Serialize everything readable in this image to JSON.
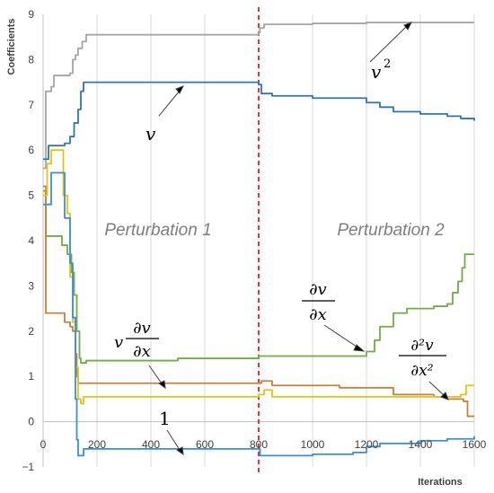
{
  "chart_data": {
    "type": "line",
    "xlabel": "Iterations",
    "ylabel": "Coefficients",
    "xlim": [
      0,
      1600
    ],
    "ylim": [
      -1,
      9
    ],
    "xticks": [
      "0",
      "200",
      "400",
      "600",
      "800",
      "1000",
      "1200",
      "1400",
      "1600"
    ],
    "yticks": [
      "−1",
      "0",
      "1",
      "2",
      "3",
      "4",
      "5",
      "6",
      "7",
      "8",
      "9"
    ],
    "grid": "vertical",
    "vline": {
      "x": 800,
      "color": "#e02020",
      "style": "dashed"
    },
    "annotations": [
      {
        "text": "Perturbation 1",
        "x": 300,
        "y": 4.2
      },
      {
        "text": "Perturbation 2",
        "x": 1325,
        "y": 4.2
      }
    ],
    "series": [
      {
        "name": "v²",
        "color": "#a6a6a6",
        "points": [
          [
            0,
            5.6
          ],
          [
            10,
            7.3
          ],
          [
            30,
            7.4
          ],
          [
            40,
            7.65
          ],
          [
            80,
            7.65
          ],
          [
            100,
            7.7
          ],
          [
            110,
            8.0
          ],
          [
            120,
            8.1
          ],
          [
            130,
            8.25
          ],
          [
            145,
            8.4
          ],
          [
            160,
            8.55
          ],
          [
            800,
            8.6
          ],
          [
            805,
            8.7
          ],
          [
            820,
            8.78
          ],
          [
            1000,
            8.8
          ],
          [
            1200,
            8.82
          ],
          [
            1600,
            8.82
          ]
        ]
      },
      {
        "name": "v",
        "color": "#2e75b6",
        "points": [
          [
            0,
            5.8
          ],
          [
            20,
            6.1
          ],
          [
            80,
            6.15
          ],
          [
            100,
            6.3
          ],
          [
            115,
            6.6
          ],
          [
            130,
            6.9
          ],
          [
            140,
            7.3
          ],
          [
            150,
            7.5
          ],
          [
            800,
            7.45
          ],
          [
            810,
            7.25
          ],
          [
            850,
            7.2
          ],
          [
            1000,
            7.15
          ],
          [
            1200,
            7.05
          ],
          [
            1250,
            6.95
          ],
          [
            1300,
            6.85
          ],
          [
            1400,
            6.8
          ],
          [
            1500,
            6.75
          ],
          [
            1550,
            6.7
          ],
          [
            1600,
            6.65
          ]
        ]
      },
      {
        "name": "∂v/∂x",
        "color": "#70ad47",
        "points": [
          [
            0,
            5.1
          ],
          [
            10,
            4.1
          ],
          [
            60,
            4.1
          ],
          [
            70,
            3.9
          ],
          [
            90,
            3.7
          ],
          [
            105,
            3.3
          ],
          [
            115,
            2.8
          ],
          [
            125,
            2.0
          ],
          [
            135,
            1.4
          ],
          [
            140,
            1.3
          ],
          [
            160,
            1.35
          ],
          [
            400,
            1.35
          ],
          [
            500,
            1.4
          ],
          [
            800,
            1.45
          ],
          [
            1000,
            1.45
          ],
          [
            1150,
            1.45
          ],
          [
            1200,
            1.55
          ],
          [
            1230,
            1.8
          ],
          [
            1250,
            2.1
          ],
          [
            1300,
            2.4
          ],
          [
            1350,
            2.5
          ],
          [
            1450,
            2.55
          ],
          [
            1500,
            2.6
          ],
          [
            1520,
            2.85
          ],
          [
            1540,
            3.1
          ],
          [
            1555,
            3.4
          ],
          [
            1565,
            3.7
          ],
          [
            1600,
            3.7
          ]
        ]
      },
      {
        "name": "v·∂v/∂x",
        "color": "#c5833a",
        "points": [
          [
            0,
            5.2
          ],
          [
            10,
            2.4
          ],
          [
            60,
            2.4
          ],
          [
            80,
            2.2
          ],
          [
            100,
            2.1
          ],
          [
            110,
            2.0
          ],
          [
            120,
            1.5
          ],
          [
            125,
            1.0
          ],
          [
            130,
            0.85
          ],
          [
            300,
            0.85
          ],
          [
            800,
            0.85
          ],
          [
            810,
            0.9
          ],
          [
            850,
            0.8
          ],
          [
            1100,
            0.75
          ],
          [
            1200,
            0.75
          ],
          [
            1300,
            0.6
          ],
          [
            1450,
            0.55
          ],
          [
            1500,
            0.5
          ],
          [
            1560,
            0.45
          ],
          [
            1575,
            0.12
          ],
          [
            1600,
            0.12
          ]
        ]
      },
      {
        "name": "∂²v/∂x²",
        "color": "#e6c40d",
        "points": [
          [
            0,
            5.0
          ],
          [
            15,
            5.7
          ],
          [
            30,
            6.0
          ],
          [
            60,
            6.0
          ],
          [
            75,
            5.0
          ],
          [
            90,
            4.6
          ],
          [
            100,
            3.2
          ],
          [
            110,
            2.2
          ],
          [
            120,
            1.2
          ],
          [
            130,
            0.5
          ],
          [
            140,
            0.4
          ],
          [
            150,
            0.55
          ],
          [
            400,
            0.55
          ],
          [
            800,
            0.6
          ],
          [
            820,
            0.7
          ],
          [
            850,
            0.55
          ],
          [
            1200,
            0.55
          ],
          [
            1400,
            0.55
          ],
          [
            1550,
            0.6
          ],
          [
            1570,
            0.8
          ],
          [
            1600,
            0.8
          ]
        ]
      },
      {
        "name": "1",
        "color": "#3a8fd8",
        "points": [
          [
            0,
            4.8
          ],
          [
            30,
            5.5
          ],
          [
            60,
            5.5
          ],
          [
            80,
            4.5
          ],
          [
            100,
            3.5
          ],
          [
            110,
            2.3
          ],
          [
            120,
            0.5
          ],
          [
            125,
            -0.4
          ],
          [
            130,
            -0.75
          ],
          [
            150,
            -0.6
          ],
          [
            800,
            -0.6
          ],
          [
            805,
            -0.75
          ],
          [
            850,
            -0.75
          ],
          [
            1000,
            -0.72
          ],
          [
            1150,
            -0.68
          ],
          [
            1200,
            -0.55
          ],
          [
            1250,
            -0.48
          ],
          [
            1400,
            -0.42
          ],
          [
            1500,
            -0.38
          ],
          [
            1600,
            -0.32
          ]
        ]
      }
    ],
    "labels": {
      "v2_base": "v",
      "v2_exp": "2",
      "v": "v",
      "dvdx_num": "∂v",
      "dvdx_den": "∂x",
      "vdvdx_pre": "v",
      "vdvdx_num": "∂v",
      "vdvdx_den": "∂x",
      "d2_num": "∂²v",
      "d2_den": "∂x²",
      "one": "1"
    }
  }
}
